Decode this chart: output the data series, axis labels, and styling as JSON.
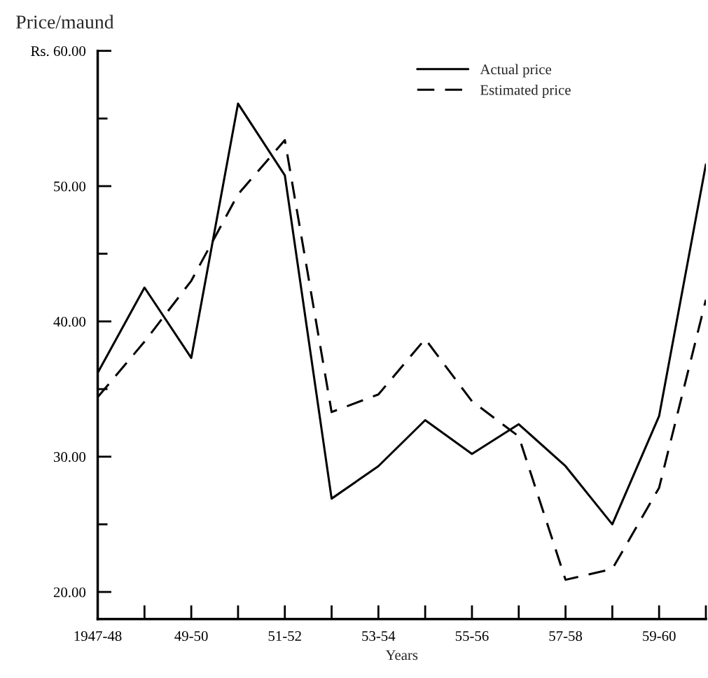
{
  "chart_data": {
    "type": "line",
    "title": "Price/maund",
    "xlabel": "Years",
    "categories": [
      "1947-48",
      null,
      "49-50",
      null,
      "51-52",
      null,
      "53-54",
      null,
      "55-56",
      null,
      "57-58",
      null,
      "59-60",
      null
    ],
    "series": [
      {
        "name": "Actual price",
        "color": "#000000",
        "line_style": "solid",
        "values": [
          36.2,
          42.5,
          37.3,
          56.1,
          50.8,
          26.9,
          29.3,
          32.7,
          30.2,
          32.4,
          29.3,
          25.0,
          33.0,
          51.6
        ]
      },
      {
        "name": "Estimated price",
        "color": "#000000",
        "line_style": "dashed",
        "values": [
          34.4,
          38.5,
          43.0,
          49.4,
          53.4,
          33.3,
          34.6,
          38.7,
          34.1,
          31.5,
          20.9,
          21.7,
          27.7,
          41.6
        ]
      }
    ],
    "ylim": [
      18,
      60
    ],
    "yticks": [
      {
        "value": 20,
        "label": "20.00"
      },
      {
        "value": 25,
        "label": null
      },
      {
        "value": 30,
        "label": "30.00"
      },
      {
        "value": 35,
        "label": null
      },
      {
        "value": 40,
        "label": "40.00"
      },
      {
        "value": 45,
        "label": null
      },
      {
        "value": 50,
        "label": "50.00"
      },
      {
        "value": 55,
        "label": null
      },
      {
        "value": 60,
        "label": "Rs. 60.00"
      }
    ],
    "grid": false,
    "legend": "top right",
    "marker": "none"
  }
}
